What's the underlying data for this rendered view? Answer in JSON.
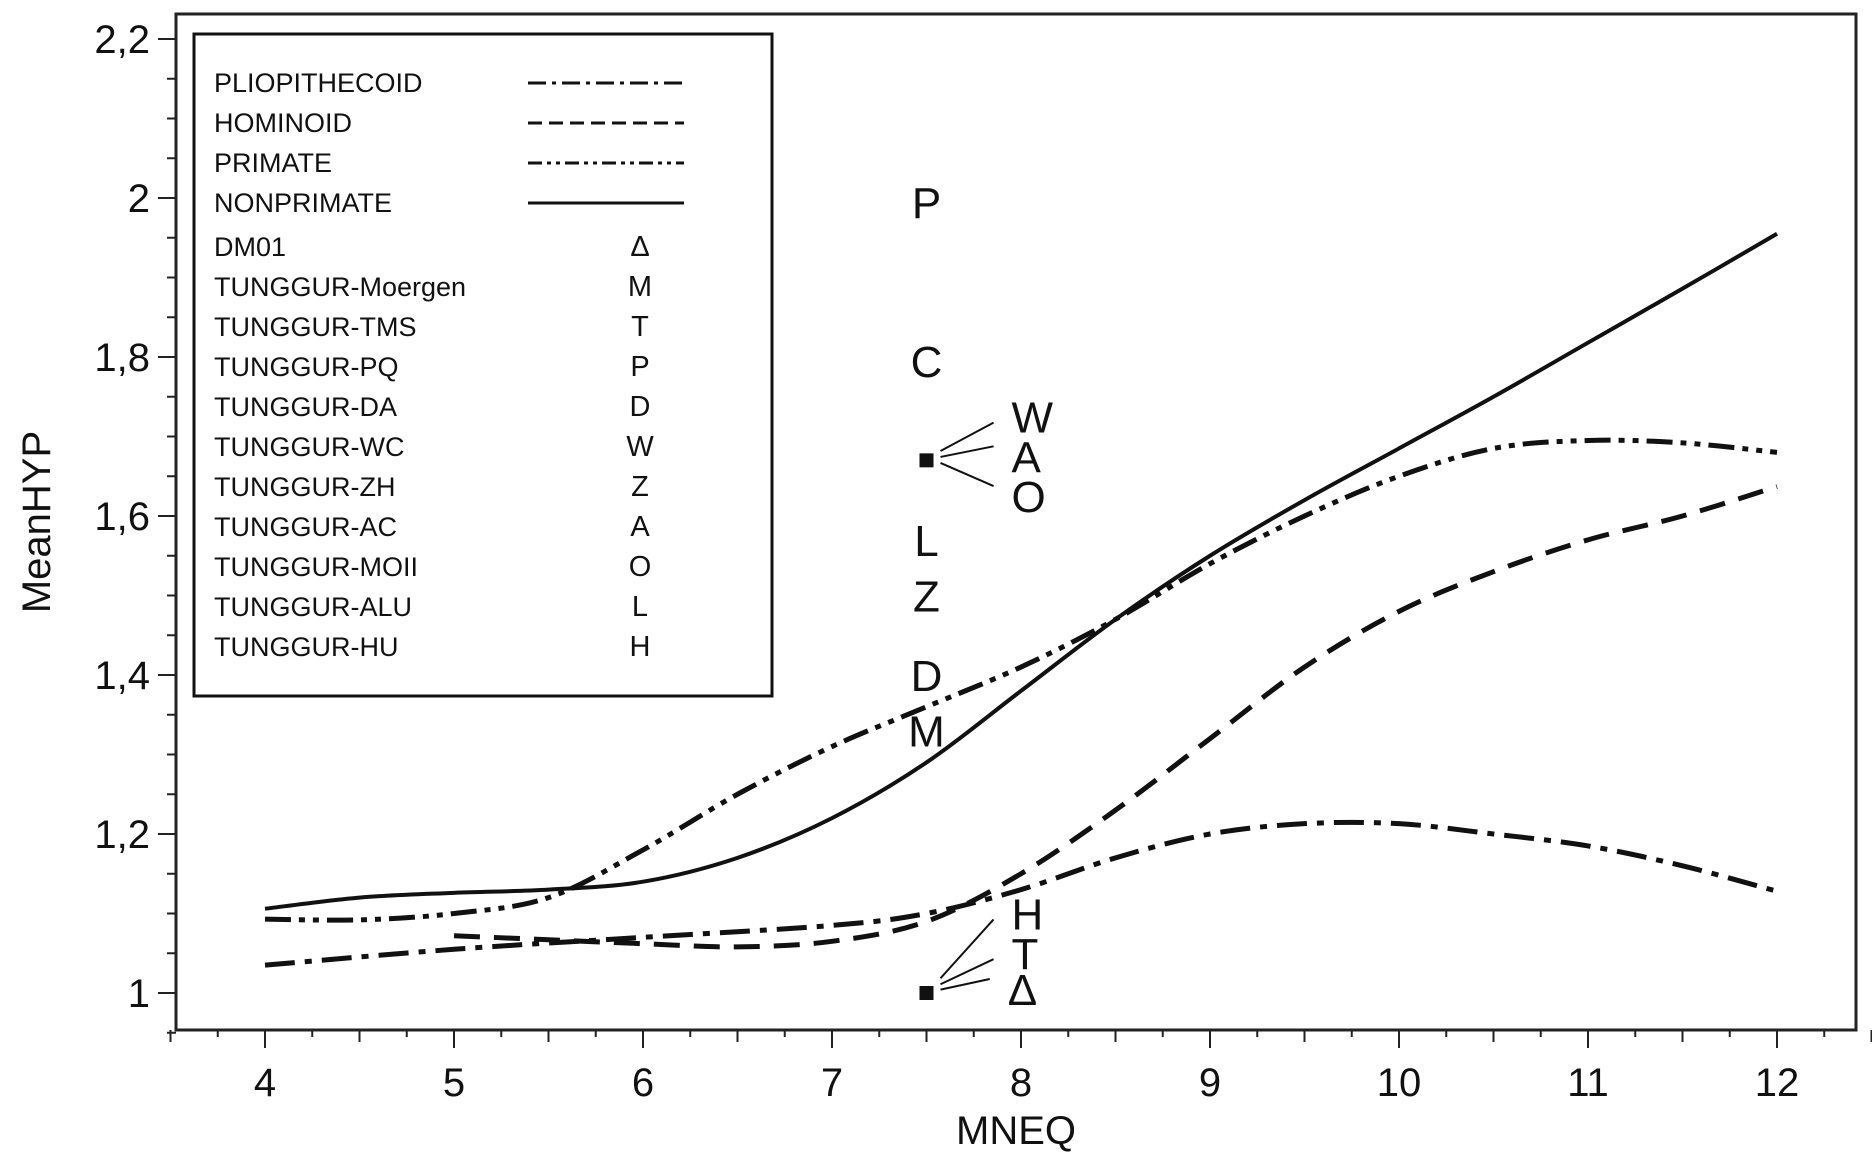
{
  "chart_data": {
    "type": "line",
    "xlabel": "MNEQ",
    "ylabel": "MeanHYP",
    "xlim": [
      3.5,
      12.5
    ],
    "ylim": [
      0.95,
      2.22
    ],
    "x_ticks": [
      4,
      5,
      6,
      7,
      8,
      9,
      10,
      11,
      12
    ],
    "x_tick_labels": [
      "4",
      "5",
      "6",
      "7",
      "8",
      "9",
      "10",
      "11",
      "12"
    ],
    "y_ticks": [
      1.0,
      1.2,
      1.4,
      1.6,
      1.8,
      2.0,
      2.2
    ],
    "y_tick_labels": [
      "1",
      "1,2",
      "1,4",
      "1,6",
      "1,8",
      "2",
      "2,2"
    ],
    "grid": false,
    "legend_position": "top-left",
    "series": [
      {
        "name": "PLIOPITHECOID",
        "style": "dash-dot",
        "x": [
          4,
          5,
          6,
          7,
          7.5,
          8,
          8.5,
          9,
          9.5,
          10,
          10.5,
          11,
          11.5,
          12
        ],
        "y": [
          1.035,
          1.055,
          1.07,
          1.085,
          1.1,
          1.13,
          1.17,
          1.2,
          1.213,
          1.213,
          1.2,
          1.185,
          1.16,
          1.128
        ]
      },
      {
        "name": "HOMINOID",
        "style": "dashed",
        "x": [
          5,
          5.5,
          6,
          6.5,
          7,
          7.5,
          8,
          8.5,
          9,
          9.5,
          10,
          10.5,
          11,
          11.5,
          12
        ],
        "y": [
          1.072,
          1.067,
          1.062,
          1.058,
          1.065,
          1.09,
          1.15,
          1.23,
          1.32,
          1.41,
          1.48,
          1.53,
          1.57,
          1.6,
          1.637
        ]
      },
      {
        "name": "PRIMATE",
        "style": "dash-dot-dot",
        "x": [
          4,
          4.5,
          5,
          5.5,
          6,
          6.5,
          7,
          7.5,
          8,
          8.5,
          9,
          9.5,
          10,
          10.5,
          11,
          11.5,
          12
        ],
        "y": [
          1.093,
          1.092,
          1.1,
          1.12,
          1.18,
          1.25,
          1.31,
          1.36,
          1.41,
          1.47,
          1.54,
          1.6,
          1.65,
          1.685,
          1.695,
          1.692,
          1.68
        ]
      },
      {
        "name": "NONPRIMATE",
        "style": "solid",
        "x": [
          4,
          4.5,
          5,
          5.5,
          6,
          6.5,
          7,
          7.5,
          8,
          8.5,
          9,
          9.5,
          10,
          10.5,
          11,
          11.5,
          12
        ],
        "y": [
          1.106,
          1.12,
          1.126,
          1.13,
          1.14,
          1.17,
          1.22,
          1.29,
          1.38,
          1.47,
          1.55,
          1.62,
          1.685,
          1.75,
          1.818,
          1.886,
          1.955
        ]
      }
    ],
    "legend_symbols": [
      {
        "name": "DM01",
        "symbol": "Δ",
        "color": "#d0202e"
      },
      {
        "name": "TUNGGUR-Moergen",
        "symbol": "M"
      },
      {
        "name": "TUNGGUR-TMS",
        "symbol": "T"
      },
      {
        "name": "TUNGGUR-PQ",
        "symbol": "P"
      },
      {
        "name": "TUNGGUR-DA",
        "symbol": "D"
      },
      {
        "name": "TUNGGUR-WC",
        "symbol": "W"
      },
      {
        "name": "TUNGGUR-ZH",
        "symbol": "Z"
      },
      {
        "name": "TUNGGUR-AC",
        "symbol": "A"
      },
      {
        "name": "TUNGGUR-MOII",
        "symbol": "O"
      },
      {
        "name": "TUNGGUR-ALU",
        "symbol": "L"
      },
      {
        "name": "TUNGGUR-HU",
        "symbol": "H"
      }
    ],
    "points": [
      {
        "label": "P",
        "x": 7.5,
        "y": 1.995
      },
      {
        "label": "C",
        "x": 7.5,
        "y": 1.795
      },
      {
        "label": "L",
        "x": 7.5,
        "y": 1.57
      },
      {
        "label": "Z",
        "x": 7.5,
        "y": 1.5
      },
      {
        "label": "D",
        "x": 7.5,
        "y": 1.4
      },
      {
        "label": "M",
        "x": 7.5,
        "y": 1.33
      },
      {
        "marker": "square",
        "x": 7.5,
        "y": 1.67,
        "labels": [
          {
            "label": "W",
            "x": 7.95,
            "y": 1.715
          },
          {
            "label": "A",
            "x": 7.95,
            "y": 1.665
          },
          {
            "label": "O",
            "x": 7.95,
            "y": 1.615
          }
        ]
      },
      {
        "marker": "square",
        "x": 7.5,
        "y": 1.0,
        "labels": [
          {
            "label": "H",
            "x": 7.95,
            "y": 1.09
          },
          {
            "label": "T",
            "x": 7.95,
            "y": 1.04
          },
          {
            "label": "Δ",
            "x": 7.93,
            "y": 0.995,
            "color": "#d0202e"
          }
        ]
      }
    ]
  }
}
